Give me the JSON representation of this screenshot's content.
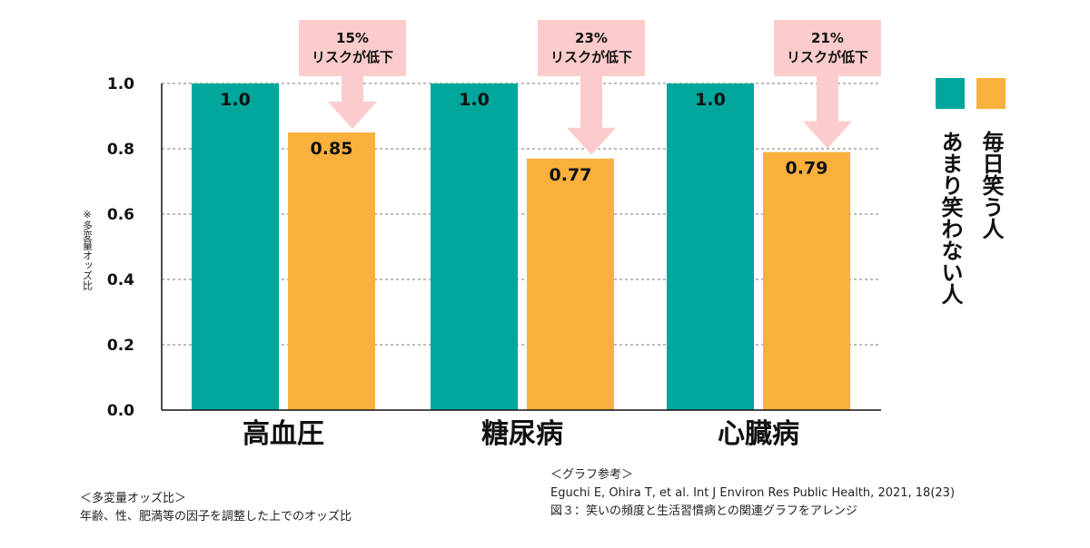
{
  "chart_data": {
    "type": "bar",
    "categories": [
      "高血圧",
      "糖尿病",
      "心臓病"
    ],
    "series": [
      {
        "name": "あまり笑わない人",
        "values": [
          1.0,
          1.0,
          1.0
        ],
        "labels": [
          "1.0",
          "1.0",
          "1.0"
        ]
      },
      {
        "name": "毎日笑う人",
        "values": [
          0.85,
          0.77,
          0.79
        ],
        "labels": [
          "0.85",
          "0.77",
          "0.79"
        ]
      }
    ],
    "ylim": [
      0,
      1.0
    ],
    "yticks": [
      0.0,
      0.2,
      0.4,
      0.6,
      0.8,
      1.0
    ],
    "ytick_labels": [
      "0.0",
      "0.2",
      "0.4",
      "0.6",
      "0.8",
      "1.0"
    ],
    "ylabel": "※多変量オッズ比",
    "grid": true,
    "legend": "right",
    "annotations": [
      {
        "category": "高血圧",
        "line1": "15%",
        "line2": "リスクが低下"
      },
      {
        "category": "糖尿病",
        "line1": "23%",
        "line2": "リスクが低下"
      },
      {
        "category": "心臓病",
        "line1": "21%",
        "line2": "リスクが低下"
      }
    ],
    "colors": {
      "あまり笑わない人": "#00a69c",
      "毎日笑う人": "#f9b03c",
      "arrow": "#fbcccb"
    }
  },
  "notes": {
    "left_title": "＜多変量オッズ比＞",
    "left_body": "年齢、性、肥満等の因子を調整した上でのオッズ比",
    "source_title": "＜グラフ参考＞",
    "source_citation": "Eguchi E, Ohira T, et al. Int J Environ Res Public Health, 2021, 18(23)",
    "source_figure": "図３：笑いの頻度と生活習慣病との関連グラフをアレンジ"
  }
}
